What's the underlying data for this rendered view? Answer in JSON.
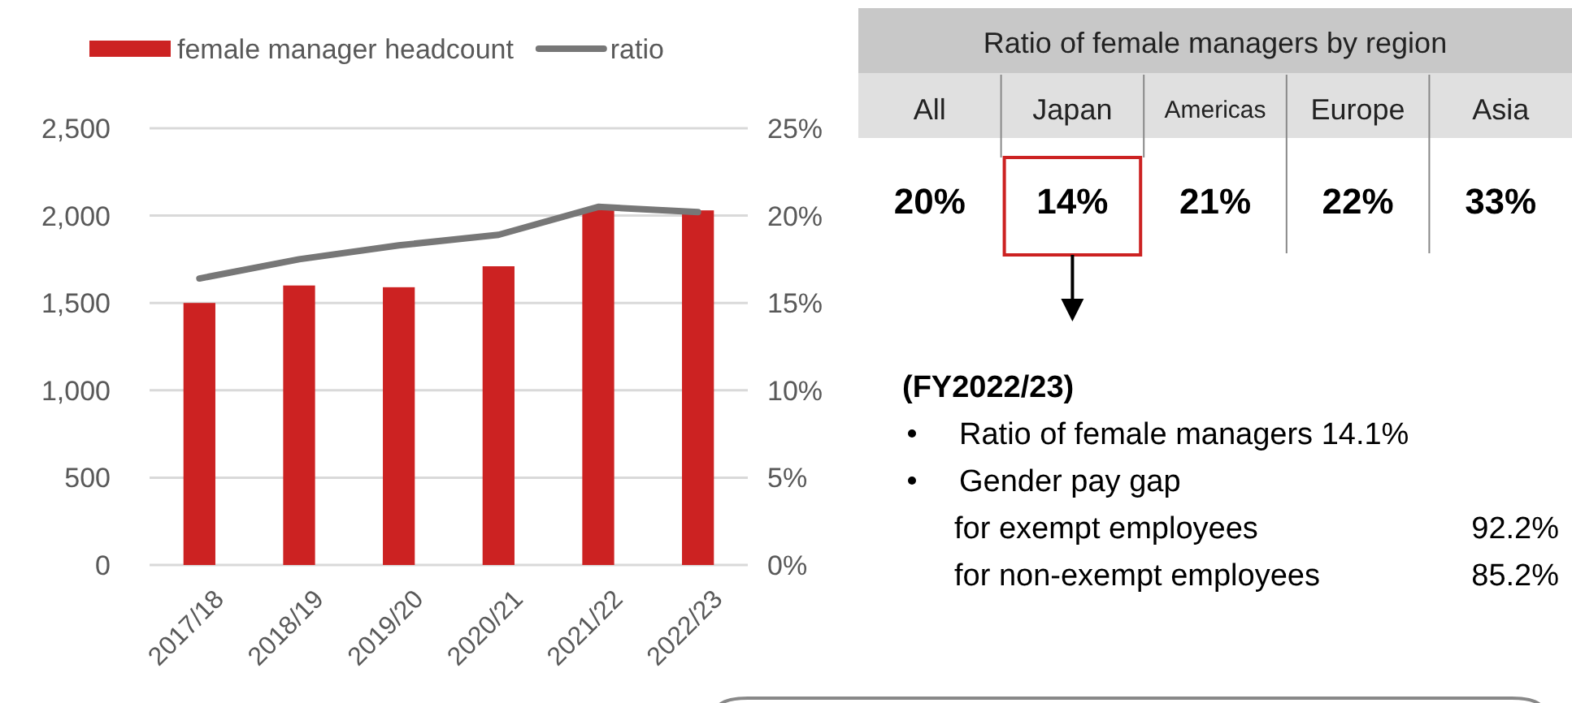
{
  "chart_data": [
    {
      "type": "bar",
      "categories": [
        "2017/18",
        "2018/19",
        "2019/20",
        "2020/21",
        "2021/22",
        "2022/23"
      ],
      "series": [
        {
          "name": "female manager headcount",
          "type": "bar",
          "color": "#cc2222",
          "values": [
            1500,
            1600,
            1590,
            1710,
            2040,
            2030
          ]
        },
        {
          "name": "ratio",
          "type": "line",
          "axis": "y2",
          "color": "#777777",
          "values": [
            16.4,
            17.5,
            18.3,
            18.9,
            20.5,
            20.2
          ]
        }
      ],
      "ylim": [
        0,
        2500
      ],
      "yticks": [
        0,
        {
          "value": 500,
          "label": "500"
        },
        {
          "value": 1000,
          "label": "1,000"
        },
        {
          "value": 1500,
          "label": "1,500"
        },
        {
          "value": 2000,
          "label": "2,000"
        },
        {
          "value": 2500,
          "label": "2,500"
        }
      ],
      "y2lim": [
        0,
        25
      ],
      "y2ticks": [
        {
          "value": 0,
          "label": "0%"
        },
        {
          "value": 5,
          "label": "5%"
        },
        {
          "value": 10,
          "label": "10%"
        },
        {
          "value": 15,
          "label": "15%"
        },
        {
          "value": 20,
          "label": "20%"
        },
        {
          "value": 25,
          "label": "25%"
        }
      ],
      "grid": "y",
      "legend": "top",
      "marker": "none",
      "line_style": "solid"
    },
    {
      "type": "other",
      "title": "Ratio of female managers by region",
      "categories": [
        "All",
        "Japan",
        "Americas",
        "Europe",
        "Asia"
      ],
      "value_labels": [
        "20%",
        "14%",
        "21%",
        "22%",
        "33%"
      ],
      "annotations": [
        "(FY2022/23)",
        "Ratio of female managers 14.1%",
        "Gender pay gap",
        "for exempt employees",
        "92.2%",
        "for non-exempt employees",
        "85.2%"
      ]
    }
  ]
}
